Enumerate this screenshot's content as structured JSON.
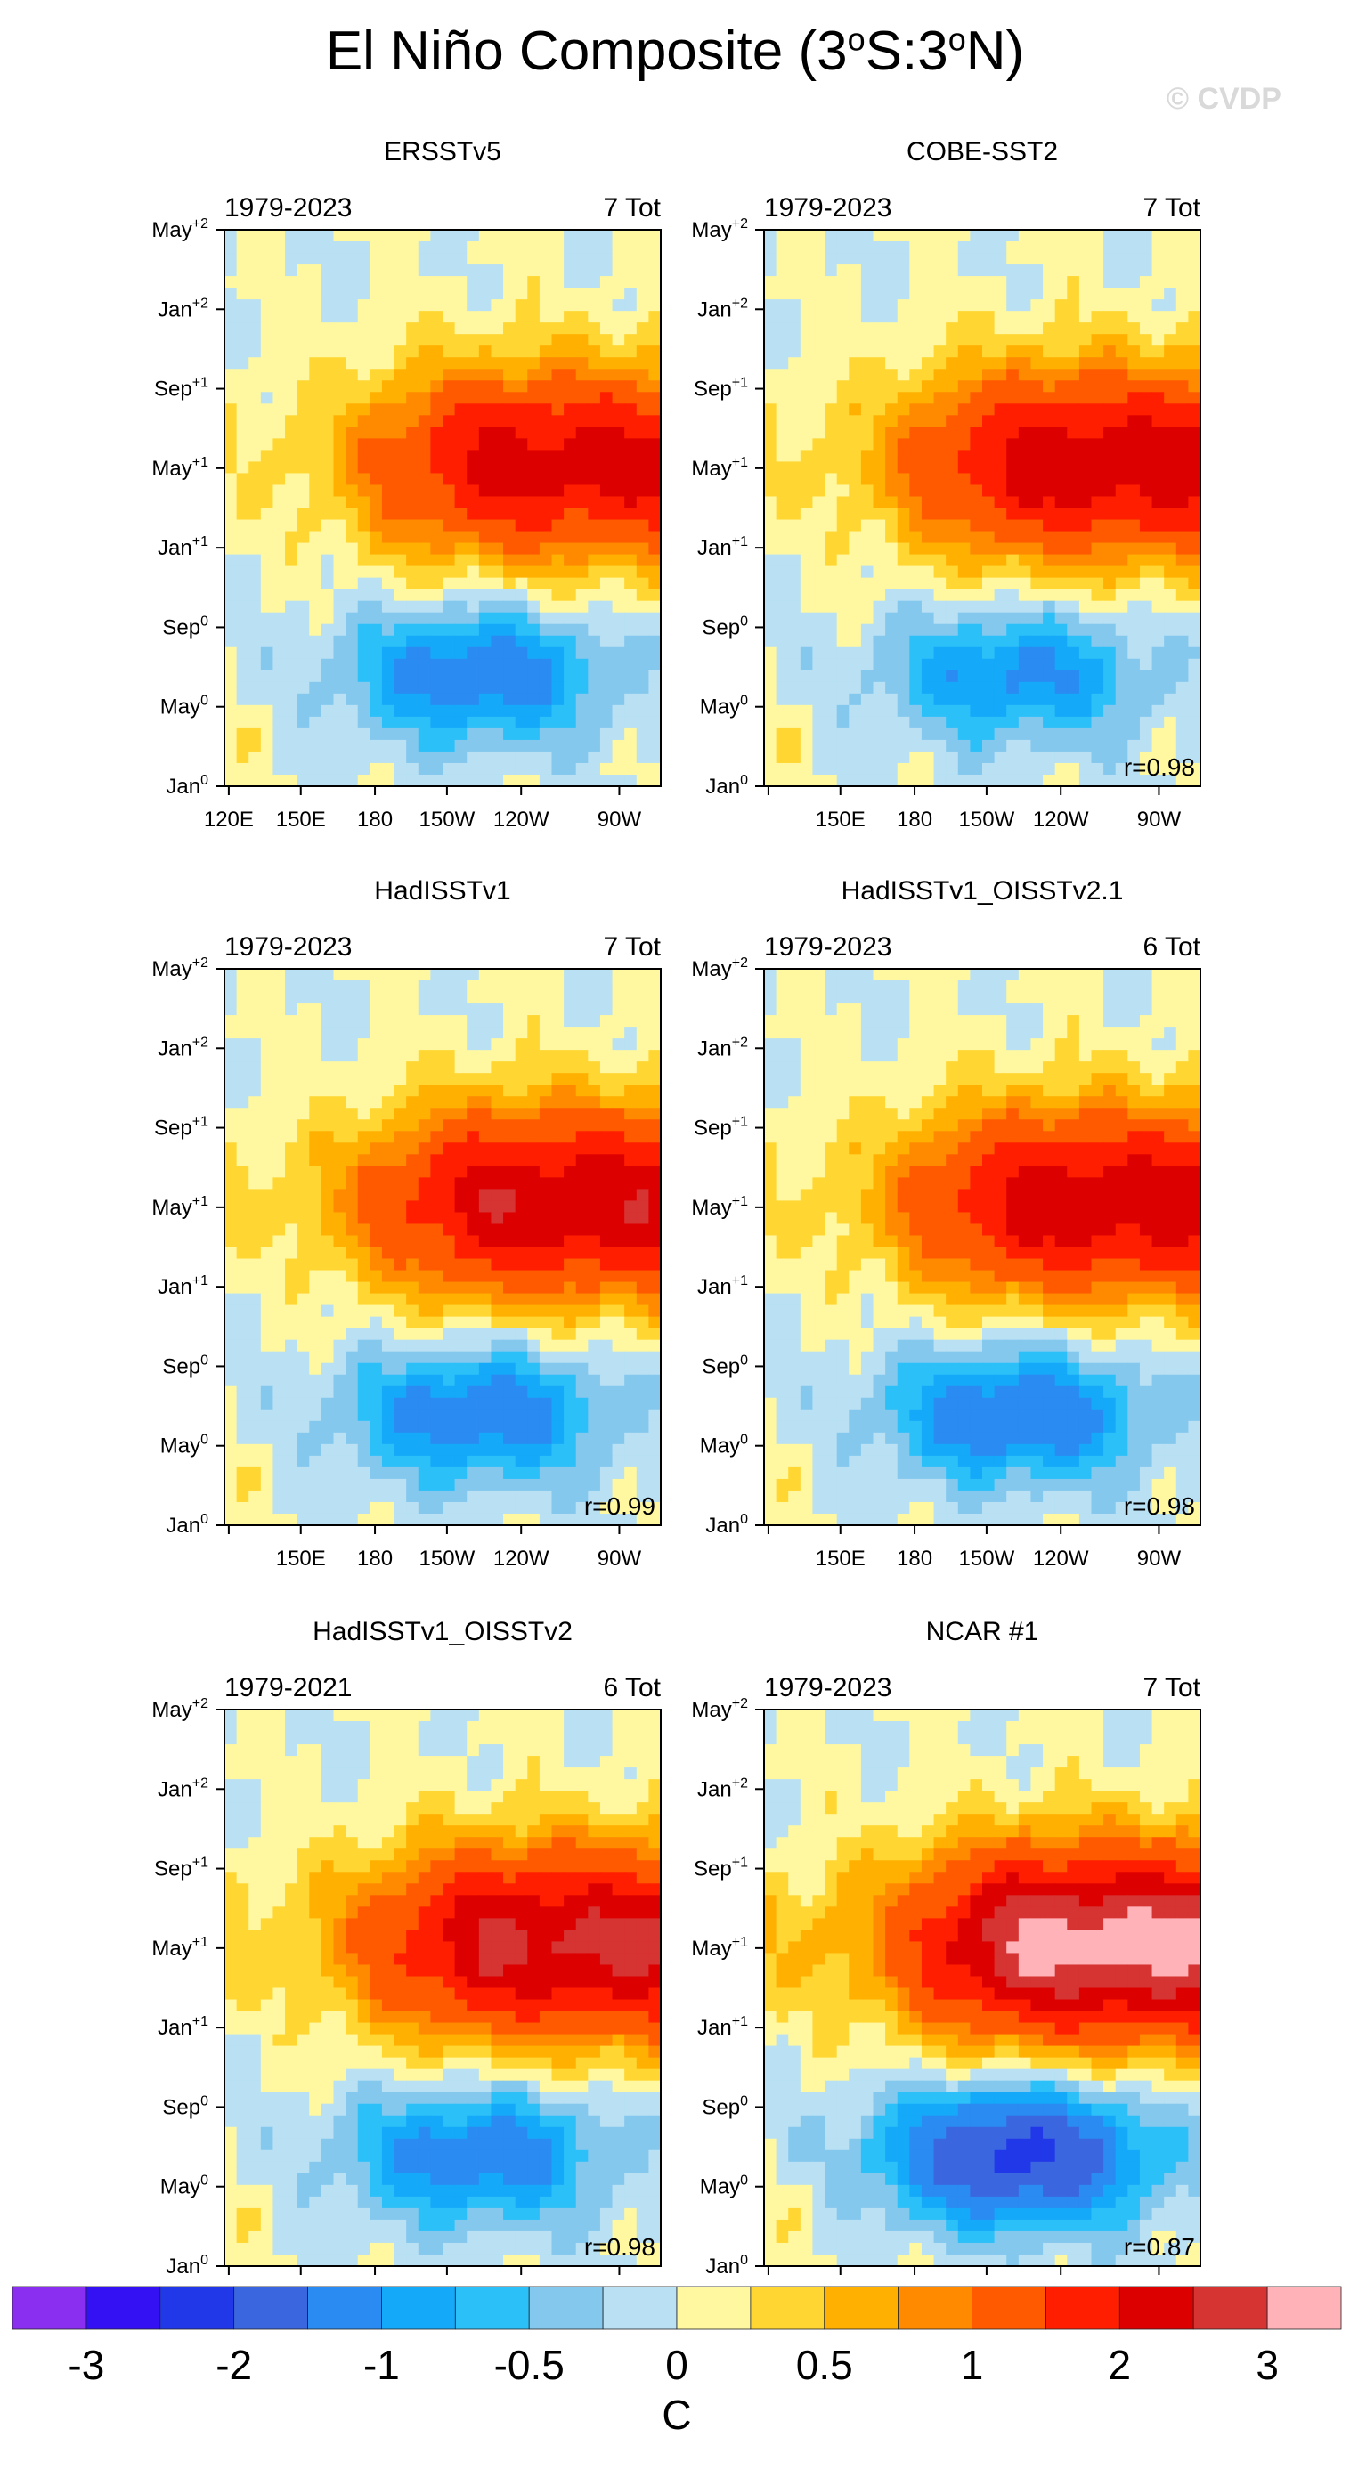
{
  "title": {
    "prefix": "El Niño Composite (3",
    "sup1": "o",
    "mid": "S:3",
    "sup2": "o",
    "suffix": "N)"
  },
  "watermark": "© CVDP",
  "chart_data": [
    {
      "type": "heatmap",
      "dataset": "ERSSTv5",
      "period": "1979-2023",
      "count": "7 Tot",
      "r": "",
      "show_120E": true,
      "max_anom": 2.2,
      "min_anom": -1.3
    },
    {
      "type": "heatmap",
      "dataset": "COBE-SST2",
      "period": "1979-2023",
      "count": "7 Tot",
      "r": "r=0.98",
      "show_120E": false,
      "max_anom": 2.3,
      "min_anom": -1.1
    },
    {
      "type": "heatmap",
      "dataset": "HadISSTv1",
      "period": "1979-2023",
      "count": "7 Tot",
      "r": "r=0.99",
      "show_120E": false,
      "max_anom": 2.4,
      "min_anom": -1.3
    },
    {
      "type": "heatmap",
      "dataset": "HadISSTv1_OISSTv2.1",
      "period": "1979-2023",
      "count": "6 Tot",
      "r": "r=0.98",
      "show_120E": false,
      "max_anom": 2.3,
      "min_anom": -1.4
    },
    {
      "type": "heatmap",
      "dataset": "HadISSTv1_OISSTv2",
      "period": "1979-2021",
      "count": "6 Tot",
      "r": "r=0.98",
      "show_120E": false,
      "max_anom": 2.6,
      "min_anom": -1.3
    },
    {
      "type": "heatmap",
      "dataset": "NCAR #1",
      "period": "1979-2023",
      "count": "7 Tot",
      "r": "r=0.87",
      "show_120E": false,
      "max_anom": 3.2,
      "min_anom": -2.2
    }
  ],
  "axes": {
    "x_ticks": [
      "120E",
      "150E",
      "180",
      "150W",
      "120W",
      "90W"
    ],
    "y_ticks": [
      {
        "base": "Jan",
        "sup": "0"
      },
      {
        "base": "May",
        "sup": "0"
      },
      {
        "base": "Sep",
        "sup": "0"
      },
      {
        "base": "Jan",
        "sup": "+1"
      },
      {
        "base": "May",
        "sup": "+1"
      },
      {
        "base": "Sep",
        "sup": "+1"
      },
      {
        "base": "Jan",
        "sup": "+2"
      },
      {
        "base": "May",
        "sup": "+2"
      }
    ]
  },
  "colorbar": {
    "unit": "C",
    "labels": [
      "-3",
      "-2",
      "-1",
      "-0.5",
      "0",
      "0.5",
      "1",
      "2",
      "3"
    ],
    "levels": [
      -3,
      -2.5,
      -2,
      -1.5,
      -1,
      -0.75,
      -0.5,
      -0.25,
      0,
      0.25,
      0.5,
      0.75,
      1,
      1.5,
      2,
      2.5,
      3
    ],
    "colors": [
      "#8a2ef0",
      "#3311f2",
      "#2138e8",
      "#3a66e0",
      "#2a8bf2",
      "#15a9f9",
      "#2cc0f9",
      "#85c8ee",
      "#b9e0f3",
      "#fff8a0",
      "#ffd632",
      "#ffb000",
      "#ff8a00",
      "#ff5a00",
      "#ff1e00",
      "#dd0000",
      "#d63333",
      "#ffb3b8"
    ]
  }
}
